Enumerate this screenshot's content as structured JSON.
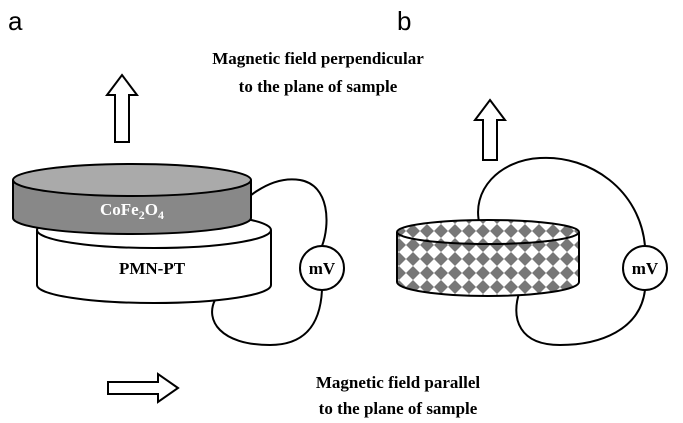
{
  "panels": [
    {
      "label": "a",
      "top_layer": {
        "label_parts": [
          "CoFe",
          "2",
          "O",
          "4"
        ]
      },
      "bottom_layer": {
        "label": "PMN-PT"
      },
      "meter": "mV"
    },
    {
      "label": "b",
      "meter": "mV"
    }
  ],
  "annotations": {
    "perpendicular": [
      "Magnetic field perpendicular",
      "to the plane of sample"
    ],
    "parallel": [
      "Magnetic field parallel",
      "to the plane of sample"
    ]
  }
}
